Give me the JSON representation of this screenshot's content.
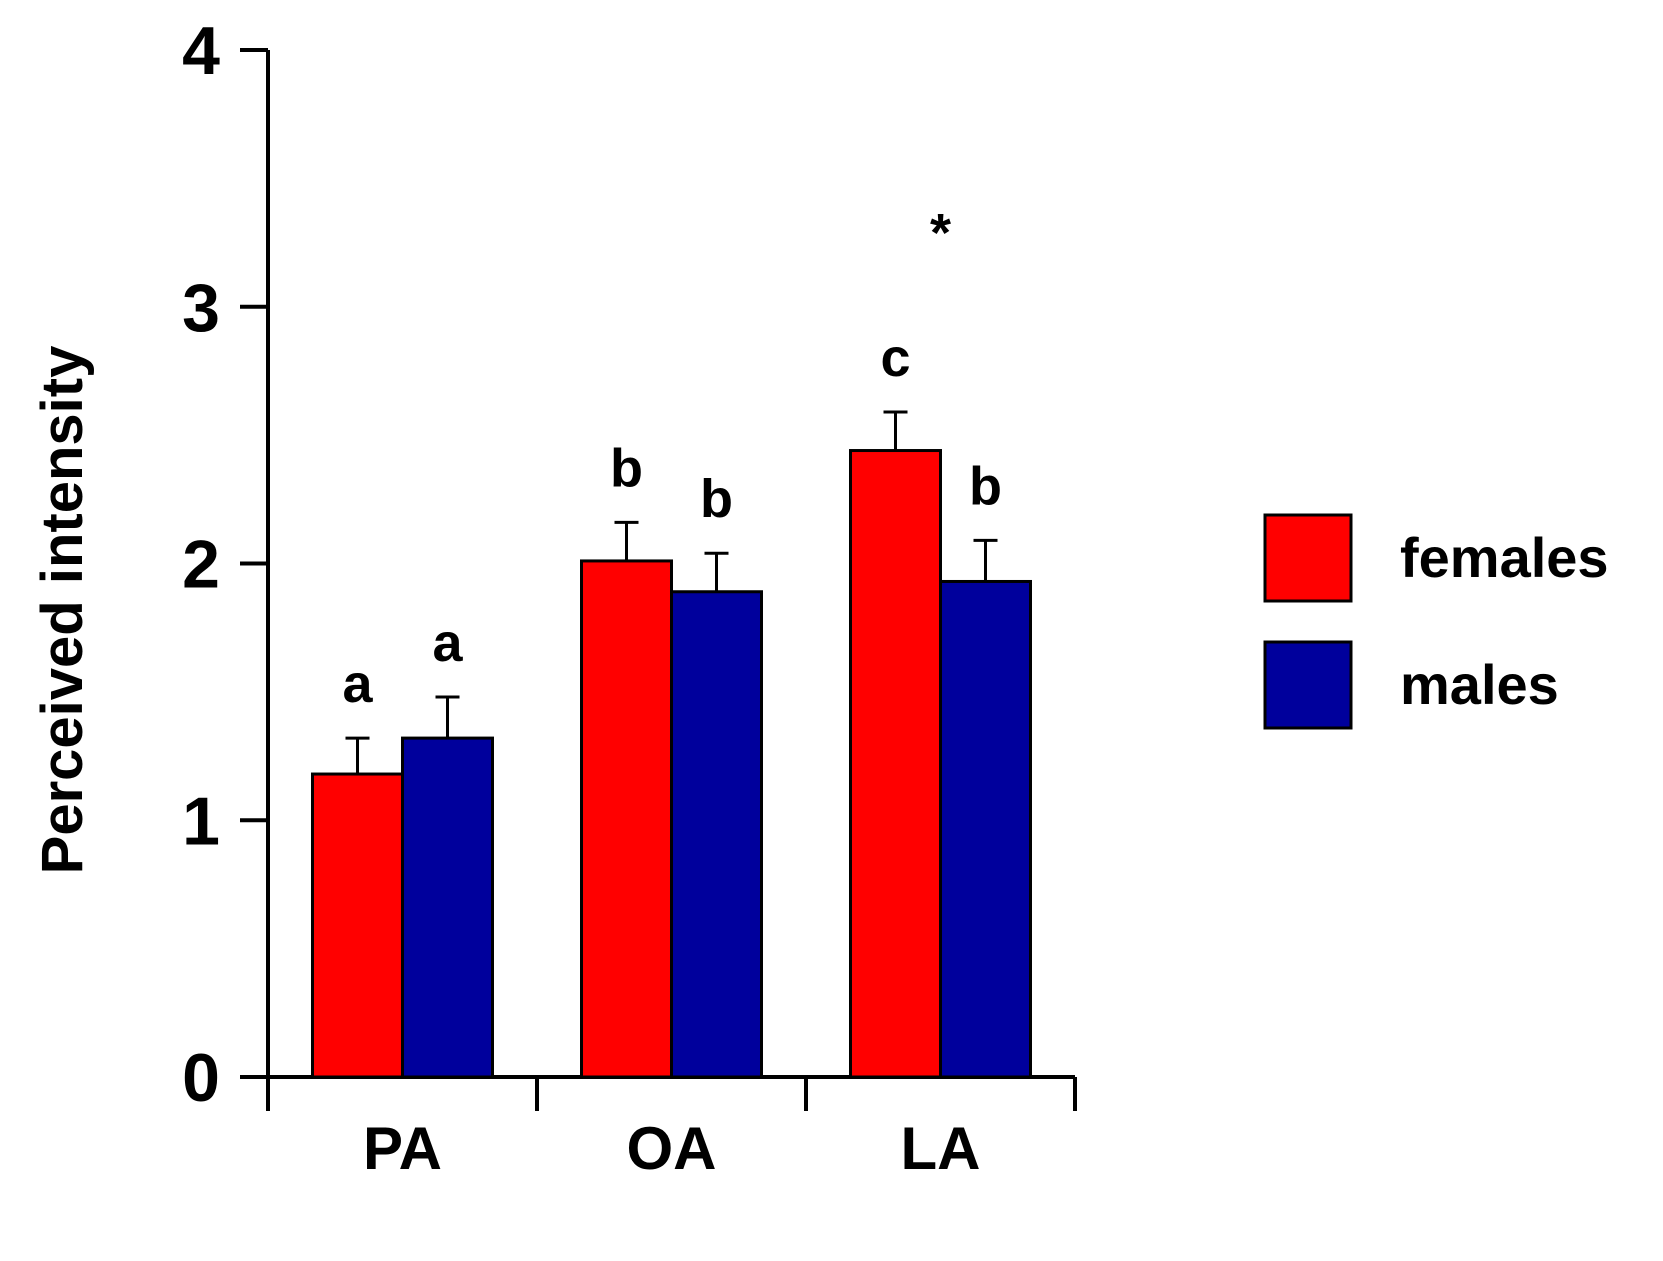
{
  "chart_data": {
    "type": "bar",
    "ylabel": "Perceived intensity",
    "xlabel": "",
    "ylim": [
      0,
      4
    ],
    "yticks": [
      "0",
      "1",
      "2",
      "3",
      "4"
    ],
    "categories": [
      "PA",
      "OA",
      "LA"
    ],
    "legend_position": "right",
    "grid": false,
    "series": [
      {
        "name": "females",
        "color": "#ff0000",
        "values": [
          1.18,
          2.01,
          2.44
        ],
        "errors": [
          0.14,
          0.15,
          0.15
        ],
        "letters": [
          "a",
          "b",
          "c"
        ]
      },
      {
        "name": "males",
        "color": "#00009c",
        "values": [
          1.32,
          1.89,
          1.93
        ],
        "errors": [
          0.16,
          0.15,
          0.16
        ],
        "letters": [
          "a",
          "b",
          "b"
        ]
      }
    ],
    "annotations": [
      {
        "text": "*",
        "category": "LA",
        "y": 3.35
      }
    ]
  }
}
